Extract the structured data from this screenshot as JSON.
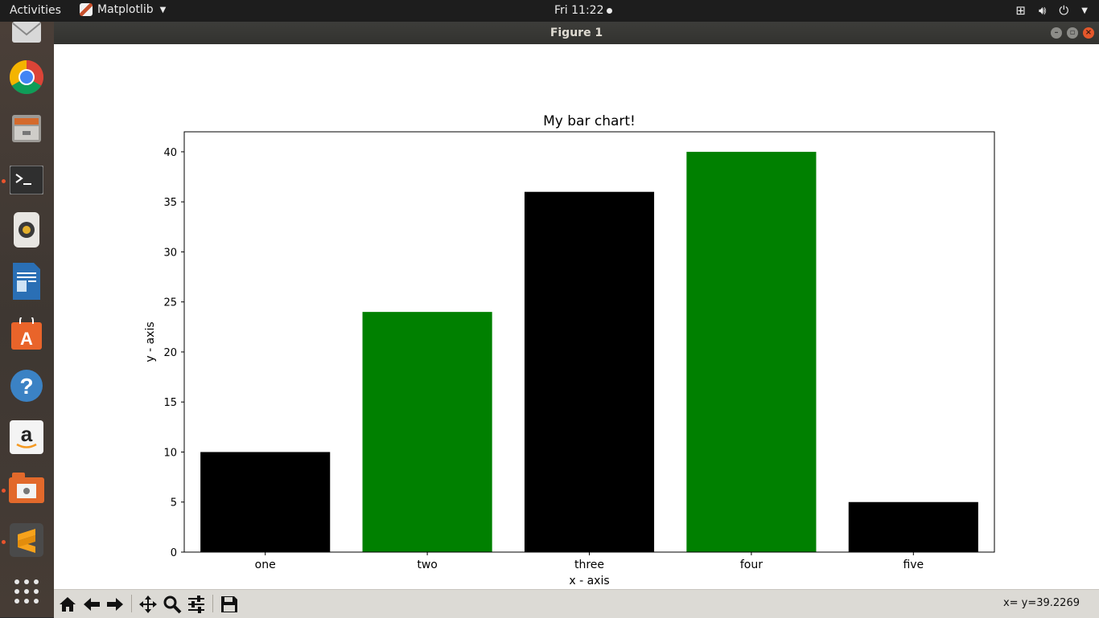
{
  "topbar": {
    "activities": "Activities",
    "app_name": "Matplotlib",
    "clock": "Fri 11:22"
  },
  "dock": {
    "items": [
      "mail-icon",
      "chrome-icon",
      "files-icon",
      "terminal-icon",
      "rhythmbox-icon",
      "writer-icon",
      "software-center-icon",
      "help-icon",
      "amazon-icon",
      "drive-icon",
      "sublime-icon",
      "app-grid-icon"
    ]
  },
  "window": {
    "title": "Figure 1"
  },
  "toolbar": {
    "coords": "x= y=39.2269"
  },
  "chart_data": {
    "type": "bar",
    "title": "My bar chart!",
    "xlabel": "x - axis",
    "ylabel": "y - axis",
    "categories": [
      "one",
      "two",
      "three",
      "four",
      "five"
    ],
    "values": [
      10,
      24,
      36,
      40,
      5
    ],
    "colors": [
      "#000000",
      "#008000",
      "#000000",
      "#008000",
      "#000000"
    ],
    "ylim": [
      0,
      42
    ],
    "yticks": [
      0,
      5,
      10,
      15,
      20,
      25,
      30,
      35,
      40
    ],
    "grid": false
  }
}
